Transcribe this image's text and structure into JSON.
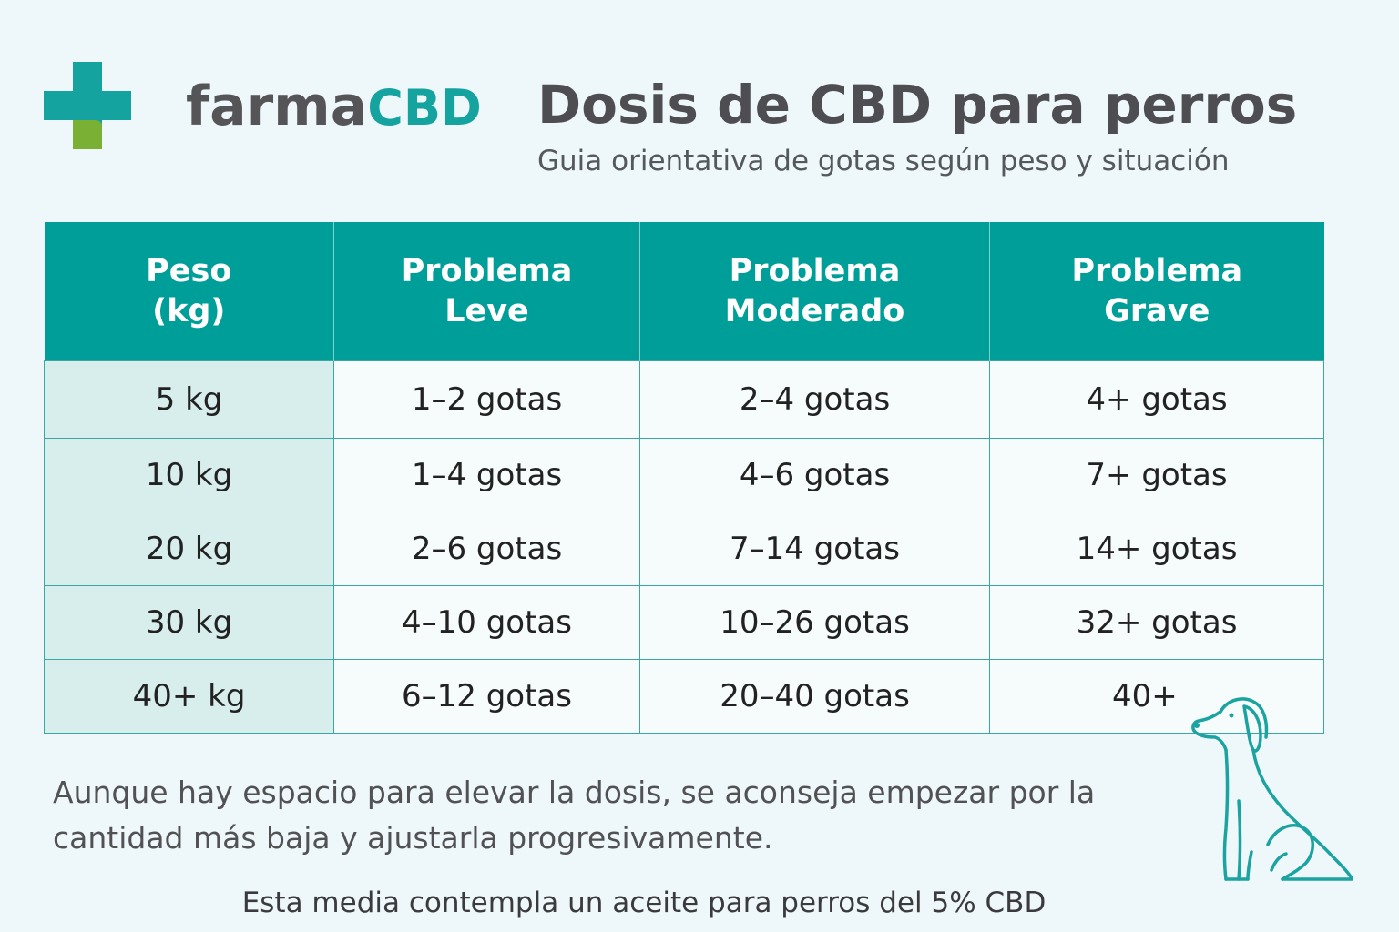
{
  "brand": {
    "name_part1": "farma",
    "name_part2": "CBD",
    "colors": {
      "teal": "#14a39f",
      "green": "#7ab034",
      "gray": "#555558"
    }
  },
  "title": "Dosis de CBD para perros",
  "subtitle": "Guia orientativa de gotas según peso y situación",
  "table": {
    "header_color": "#009e98",
    "headers": [
      {
        "line1": "Peso",
        "line2": "(kg)"
      },
      {
        "line1": "Problema",
        "line2": "Leve"
      },
      {
        "line1": "Problema",
        "line2": "Moderado"
      },
      {
        "line1": "Problema",
        "line2": "Grave"
      }
    ],
    "rows": [
      [
        "5 kg",
        "1–2 gotas",
        "2–4 gotas",
        "4+ gotas"
      ],
      [
        "10 kg",
        "1–4 gotas",
        "4–6 gotas",
        "7+ gotas"
      ],
      [
        "20 kg",
        "2–6 gotas",
        "7–14 gotas",
        "14+ gotas"
      ],
      [
        "30 kg",
        "4–10 gotas",
        "10–26 gotas",
        "32+ gotas"
      ],
      [
        "40+ kg",
        "6–12 gotas",
        "20–40 gotas",
        "40+"
      ]
    ]
  },
  "note": {
    "line1": "Aunque hay espacio para elevar la dosis, se aconseja empezar por la",
    "line2": "cantidad más baja y ajustarla progresivamente."
  },
  "footer": "Esta media contempla un aceite para perros del 5% CBD",
  "icons": {
    "logo": "medical-cross-logo-icon",
    "dog": "sitting-dog-icon"
  }
}
